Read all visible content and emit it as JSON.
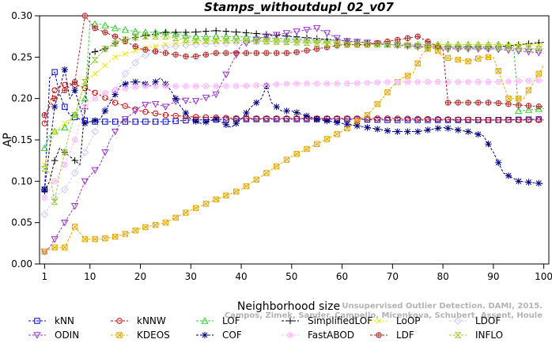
{
  "chart_data": {
    "type": "line",
    "title": "Stamps_withoutdupl_02_v07",
    "xlabel": "Neighborhood size",
    "ylabel": "AP",
    "xlim": [
      0,
      101
    ],
    "ylim": [
      0,
      0.3
    ],
    "xticks": [
      1,
      10,
      20,
      30,
      40,
      50,
      60,
      70,
      80,
      90,
      100
    ],
    "yticks": [
      0.0,
      0.05,
      0.1,
      0.15,
      0.2,
      0.25,
      0.3
    ],
    "ytick_labels": [
      "0.00",
      "0.05",
      "0.10",
      "0.15",
      "0.20",
      "0.25",
      "0.30"
    ],
    "grid": false,
    "legend_position": "bottom",
    "watermark_lines": [
      "Unsupervised Outlier Detection. DAMI, 2015.",
      "Campos, Zimek, Sander, Campello, Micenkova, Schubert, Assent, Houle"
    ],
    "series": [
      {
        "name": "kNN",
        "color": "#0000cc",
        "marker": "square",
        "points": [
          [
            1,
            0.09
          ],
          [
            2,
            0.225
          ],
          [
            3,
            0.232
          ],
          [
            4,
            0.205
          ],
          [
            5,
            0.19
          ],
          [
            6,
            0.18
          ],
          [
            8,
            0.175
          ],
          [
            10,
            0.172
          ],
          [
            15,
            0.172
          ],
          [
            20,
            0.172
          ],
          [
            25,
            0.172
          ],
          [
            30,
            0.174
          ],
          [
            40,
            0.175
          ],
          [
            50,
            0.175
          ],
          [
            60,
            0.175
          ],
          [
            70,
            0.174
          ],
          [
            80,
            0.174
          ],
          [
            90,
            0.174
          ],
          [
            100,
            0.175
          ]
        ]
      },
      {
        "name": "kNNW",
        "color": "#cc0000",
        "marker": "circle",
        "points": [
          [
            1,
            0.17
          ],
          [
            2,
            0.195
          ],
          [
            3,
            0.21
          ],
          [
            4,
            0.215
          ],
          [
            6,
            0.218
          ],
          [
            8,
            0.215
          ],
          [
            10,
            0.21
          ],
          [
            15,
            0.195
          ],
          [
            20,
            0.185
          ],
          [
            25,
            0.18
          ],
          [
            30,
            0.178
          ],
          [
            40,
            0.176
          ],
          [
            50,
            0.176
          ],
          [
            60,
            0.176
          ],
          [
            70,
            0.176
          ],
          [
            80,
            0.175
          ],
          [
            90,
            0.174
          ],
          [
            100,
            0.174
          ]
        ]
      },
      {
        "name": "LOF",
        "color": "#33cc33",
        "marker": "triangle",
        "points": [
          [
            1,
            0.14
          ],
          [
            2,
            0.155
          ],
          [
            3,
            0.16
          ],
          [
            5,
            0.165
          ],
          [
            7,
            0.18
          ],
          [
            9,
            0.2
          ],
          [
            10,
            0.29
          ],
          [
            12,
            0.29
          ],
          [
            15,
            0.285
          ],
          [
            20,
            0.28
          ],
          [
            25,
            0.28
          ],
          [
            30,
            0.275
          ],
          [
            40,
            0.275
          ],
          [
            50,
            0.272
          ],
          [
            60,
            0.27
          ],
          [
            70,
            0.265
          ],
          [
            80,
            0.265
          ],
          [
            90,
            0.265
          ],
          [
            94,
            0.265
          ],
          [
            95,
            0.185
          ],
          [
            100,
            0.188
          ]
        ]
      },
      {
        "name": "SimplifiedLOF",
        "color": "#000000",
        "marker": "plus",
        "points": [
          [
            1,
            0.088
          ],
          [
            2,
            0.1
          ],
          [
            3,
            0.125
          ],
          [
            4,
            0.14
          ],
          [
            6,
            0.13
          ],
          [
            8,
            0.12
          ],
          [
            10,
            0.255
          ],
          [
            13,
            0.26
          ],
          [
            16,
            0.27
          ],
          [
            20,
            0.275
          ],
          [
            25,
            0.28
          ],
          [
            30,
            0.28
          ],
          [
            35,
            0.282
          ],
          [
            40,
            0.28
          ],
          [
            50,
            0.275
          ],
          [
            60,
            0.27
          ],
          [
            70,
            0.265
          ],
          [
            80,
            0.262
          ],
          [
            90,
            0.262
          ],
          [
            100,
            0.268
          ]
        ]
      },
      {
        "name": "LoOP",
        "color": "#f2e600",
        "marker": "cross",
        "points": [
          [
            1,
            0.12
          ],
          [
            3,
            0.16
          ],
          [
            5,
            0.17
          ],
          [
            7,
            0.18
          ],
          [
            9,
            0.22
          ],
          [
            12,
            0.235
          ],
          [
            15,
            0.25
          ],
          [
            20,
            0.26
          ],
          [
            25,
            0.265
          ],
          [
            30,
            0.268
          ],
          [
            40,
            0.27
          ],
          [
            50,
            0.27
          ],
          [
            60,
            0.268
          ],
          [
            70,
            0.265
          ],
          [
            80,
            0.265
          ],
          [
            90,
            0.265
          ],
          [
            100,
            0.265
          ]
        ]
      },
      {
        "name": "LDOF",
        "color": "#c8c8ff",
        "marker": "diamond",
        "points": [
          [
            1,
            0.06
          ],
          [
            3,
            0.08
          ],
          [
            5,
            0.09
          ],
          [
            7,
            0.11
          ],
          [
            9,
            0.135
          ],
          [
            11,
            0.16
          ],
          [
            14,
            0.2
          ],
          [
            17,
            0.23
          ],
          [
            20,
            0.25
          ],
          [
            25,
            0.262
          ],
          [
            30,
            0.265
          ],
          [
            40,
            0.268
          ],
          [
            50,
            0.27
          ],
          [
            60,
            0.27
          ],
          [
            70,
            0.265
          ],
          [
            80,
            0.262
          ],
          [
            90,
            0.26
          ],
          [
            100,
            0.26
          ]
        ]
      },
      {
        "name": "ODIN",
        "color": "#9933cc",
        "marker": "triangle-down",
        "points": [
          [
            1,
            0.015
          ],
          [
            2,
            0.02
          ],
          [
            3,
            0.03
          ],
          [
            5,
            0.05
          ],
          [
            7,
            0.07
          ],
          [
            9,
            0.1
          ],
          [
            12,
            0.12
          ],
          [
            14,
            0.15
          ],
          [
            16,
            0.17
          ],
          [
            18,
            0.18
          ],
          [
            20,
            0.19
          ],
          [
            22,
            0.195
          ],
          [
            25,
            0.19
          ],
          [
            28,
            0.2
          ],
          [
            30,
            0.195
          ],
          [
            35,
            0.205
          ],
          [
            40,
            0.265
          ],
          [
            45,
            0.275
          ],
          [
            50,
            0.28
          ],
          [
            55,
            0.285
          ],
          [
            60,
            0.27
          ],
          [
            70,
            0.265
          ],
          [
            80,
            0.26
          ],
          [
            90,
            0.26
          ],
          [
            100,
            0.255
          ]
        ]
      },
      {
        "name": "KDEOS",
        "color": "#e6a800",
        "marker": "square-x",
        "points": [
          [
            1,
            0.015
          ],
          [
            3,
            0.02
          ],
          [
            5,
            0.02
          ],
          [
            7,
            0.045
          ],
          [
            9,
            0.03
          ],
          [
            12,
            0.03
          ],
          [
            15,
            0.033
          ],
          [
            18,
            0.038
          ],
          [
            20,
            0.043
          ],
          [
            25,
            0.05
          ],
          [
            30,
            0.065
          ],
          [
            35,
            0.078
          ],
          [
            40,
            0.09
          ],
          [
            45,
            0.11
          ],
          [
            50,
            0.13
          ],
          [
            55,
            0.145
          ],
          [
            60,
            0.16
          ],
          [
            65,
            0.18
          ],
          [
            68,
            0.2
          ],
          [
            70,
            0.215
          ],
          [
            72,
            0.225
          ],
          [
            74,
            0.23
          ],
          [
            76,
            0.255
          ],
          [
            78,
            0.265
          ],
          [
            80,
            0.25
          ],
          [
            85,
            0.245
          ],
          [
            88,
            0.25
          ],
          [
            90,
            0.25
          ],
          [
            93,
            0.2
          ],
          [
            96,
            0.2
          ],
          [
            100,
            0.24
          ]
        ]
      },
      {
        "name": "COF",
        "color": "#000080",
        "marker": "star",
        "points": [
          [
            1,
            0.09
          ],
          [
            3,
            0.19
          ],
          [
            5,
            0.235
          ],
          [
            6,
            0.2
          ],
          [
            7,
            0.21
          ],
          [
            9,
            0.17
          ],
          [
            12,
            0.175
          ],
          [
            14,
            0.195
          ],
          [
            16,
            0.215
          ],
          [
            18,
            0.22
          ],
          [
            20,
            0.22
          ],
          [
            22,
            0.215
          ],
          [
            24,
            0.225
          ],
          [
            26,
            0.21
          ],
          [
            28,
            0.19
          ],
          [
            30,
            0.175
          ],
          [
            32,
            0.17
          ],
          [
            35,
            0.175
          ],
          [
            38,
            0.165
          ],
          [
            40,
            0.175
          ],
          [
            42,
            0.19
          ],
          [
            44,
            0.2
          ],
          [
            45,
            0.215
          ],
          [
            46,
            0.195
          ],
          [
            48,
            0.185
          ],
          [
            50,
            0.185
          ],
          [
            55,
            0.175
          ],
          [
            60,
            0.17
          ],
          [
            65,
            0.165
          ],
          [
            70,
            0.16
          ],
          [
            75,
            0.16
          ],
          [
            80,
            0.165
          ],
          [
            85,
            0.16
          ],
          [
            88,
            0.155
          ],
          [
            90,
            0.135
          ],
          [
            92,
            0.11
          ],
          [
            95,
            0.1
          ],
          [
            100,
            0.097
          ]
        ]
      },
      {
        "name": "FastABOD",
        "color": "#ffb3ff",
        "marker": "circle-cross",
        "points": [
          [
            1,
            0.08
          ],
          [
            3,
            0.1
          ],
          [
            5,
            0.12
          ],
          [
            7,
            0.15
          ],
          [
            9,
            0.19
          ],
          [
            12,
            0.205
          ],
          [
            15,
            0.21
          ],
          [
            20,
            0.215
          ],
          [
            30,
            0.215
          ],
          [
            40,
            0.215
          ],
          [
            50,
            0.218
          ],
          [
            60,
            0.218
          ],
          [
            70,
            0.22
          ],
          [
            80,
            0.22
          ],
          [
            90,
            0.22
          ],
          [
            100,
            0.222
          ]
        ]
      },
      {
        "name": "LDF",
        "color": "#b22222",
        "marker": "circle-plus",
        "points": [
          [
            1,
            0.18
          ],
          [
            3,
            0.2
          ],
          [
            5,
            0.21
          ],
          [
            7,
            0.22
          ],
          [
            9,
            0.3
          ],
          [
            11,
            0.285
          ],
          [
            13,
            0.28
          ],
          [
            15,
            0.275
          ],
          [
            20,
            0.26
          ],
          [
            25,
            0.255
          ],
          [
            30,
            0.25
          ],
          [
            35,
            0.255
          ],
          [
            40,
            0.255
          ],
          [
            50,
            0.255
          ],
          [
            55,
            0.26
          ],
          [
            60,
            0.265
          ],
          [
            65,
            0.265
          ],
          [
            70,
            0.27
          ],
          [
            75,
            0.275
          ],
          [
            80,
            0.26
          ],
          [
            81,
            0.195
          ],
          [
            85,
            0.195
          ],
          [
            90,
            0.195
          ],
          [
            95,
            0.192
          ],
          [
            100,
            0.19
          ]
        ]
      },
      {
        "name": "INFLO",
        "color": "#99cc33",
        "marker": "hourglass",
        "points": [
          [
            1,
            0.115
          ],
          [
            2,
            0.11
          ],
          [
            3,
            0.075
          ],
          [
            4,
            0.11
          ],
          [
            6,
            0.16
          ],
          [
            8,
            0.2
          ],
          [
            10,
            0.24
          ],
          [
            13,
            0.26
          ],
          [
            16,
            0.27
          ],
          [
            20,
            0.275
          ],
          [
            25,
            0.275
          ],
          [
            30,
            0.27
          ],
          [
            40,
            0.27
          ],
          [
            50,
            0.268
          ],
          [
            60,
            0.265
          ],
          [
            70,
            0.265
          ],
          [
            80,
            0.262
          ],
          [
            90,
            0.262
          ],
          [
            100,
            0.26
          ]
        ]
      }
    ]
  }
}
